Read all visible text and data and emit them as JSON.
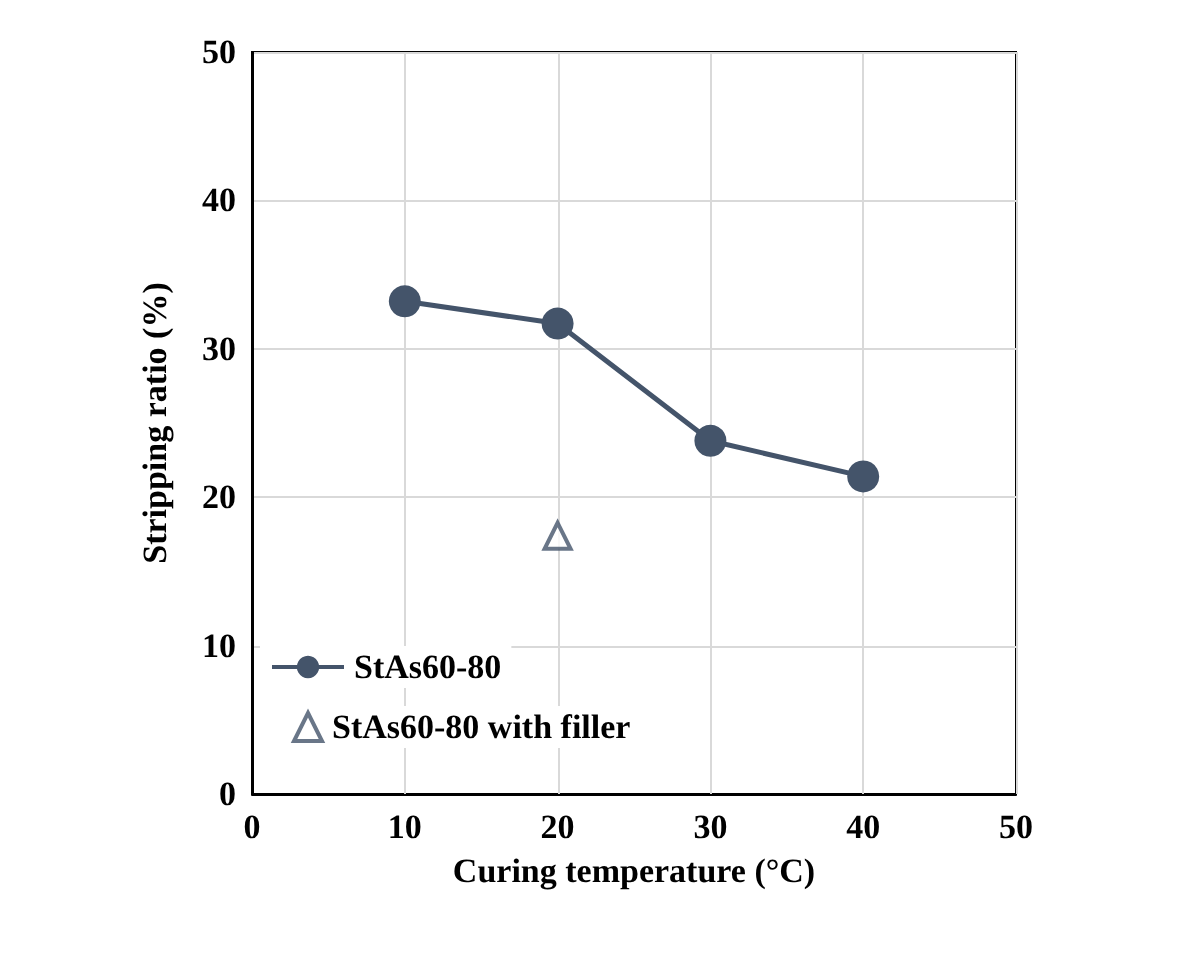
{
  "chart_data": {
    "type": "line",
    "xlabel": "Curing temperature (°C)",
    "ylabel": "Stripping ratio (%)",
    "xlim": [
      0,
      50
    ],
    "xticks": [
      0,
      10,
      20,
      30,
      40,
      50
    ],
    "ylim": [
      0,
      50
    ],
    "yticks": [
      0,
      10,
      20,
      30,
      40,
      50
    ],
    "grid": true,
    "legend": "bottom left",
    "series": [
      {
        "name": "StAs60-80",
        "marker": "circle",
        "color": "#44546a",
        "x": [
          10,
          20,
          30,
          40
        ],
        "values": [
          33.2,
          31.7,
          23.8,
          21.4
        ]
      },
      {
        "name": "StAs60-80 with filler",
        "type": "scatter",
        "marker": "triangle",
        "color": "#44546a",
        "x": [
          20
        ],
        "values": [
          17.4
        ]
      }
    ]
  }
}
